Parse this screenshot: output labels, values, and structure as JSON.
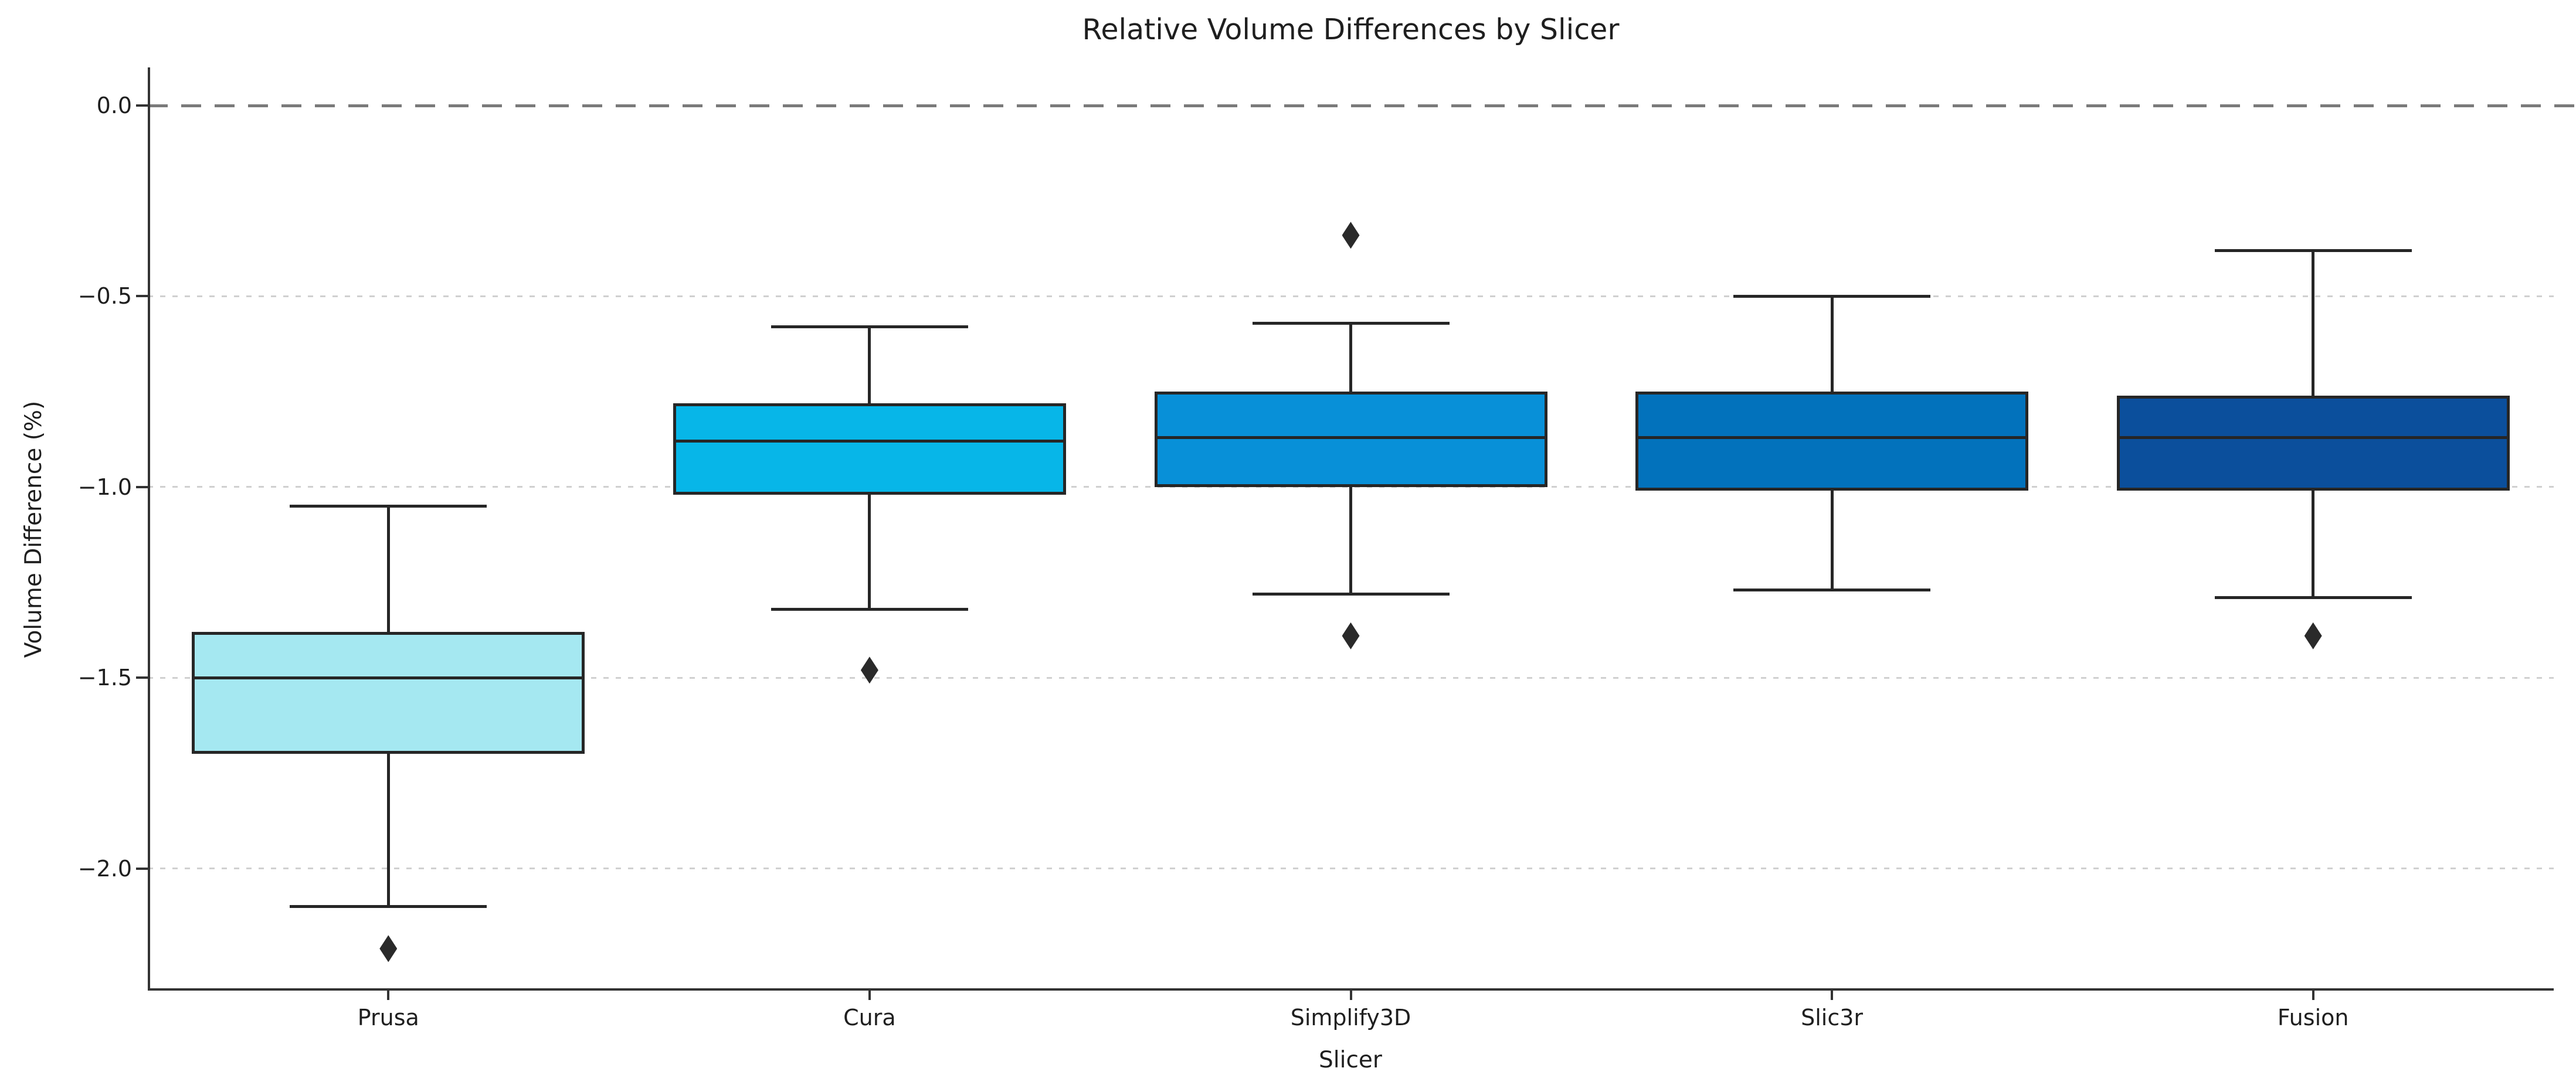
{
  "figure": {
    "background": "#ffffff",
    "text_color": "#1f1f1f",
    "spine_color": "#333333",
    "grid_color": "#d0d0d0"
  },
  "chart_data": {
    "type": "boxplot",
    "title": "Relative Volume Differences by Slicer",
    "xlabel": "Slicer",
    "ylabel": "Volume Difference (%)",
    "categories": [
      "Prusa",
      "Cura",
      "Simplify3D",
      "Slic3r",
      "Fusion"
    ],
    "ylim": [
      -2.32,
      0.1
    ],
    "grid": "horizontal-dashed",
    "legend": "none",
    "box_edge_color": "#262626",
    "outlier_color": "#2a2a2a",
    "outlier_marker": "diamond",
    "zero_line": {
      "value": 0.0,
      "style": "dashed",
      "color": "#7a7a7a"
    },
    "yticks": [
      {
        "label": "0.0",
        "value": 0.0
      },
      {
        "label": "−0.5",
        "value": -0.5
      },
      {
        "label": "−1.0",
        "value": -1.0
      },
      {
        "label": "−1.5",
        "value": -1.5
      },
      {
        "label": "−2.0",
        "value": -2.0
      }
    ],
    "series": [
      {
        "name": "Prusa",
        "box_color": "#A5E8F1",
        "whisker_low": -2.1,
        "q1": -1.7,
        "median": -1.5,
        "q3": -1.38,
        "whisker_high": -1.05,
        "outliers": [
          -2.21
        ]
      },
      {
        "name": "Cura",
        "box_color": "#07B6E8",
        "whisker_low": -1.32,
        "q1": -1.02,
        "median": -0.88,
        "q3": -0.78,
        "whisker_high": -0.58,
        "outliers": [
          -1.48
        ]
      },
      {
        "name": "Simplify3D",
        "box_color": "#0890D8",
        "whisker_low": -1.28,
        "q1": -1.0,
        "median": -0.87,
        "q3": -0.75,
        "whisker_high": -0.57,
        "outliers": [
          -0.34,
          -1.39
        ]
      },
      {
        "name": "Slic3r",
        "box_color": "#0272BC",
        "whisker_low": -1.27,
        "q1": -1.01,
        "median": -0.87,
        "q3": -0.75,
        "whisker_high": -0.5,
        "outliers": []
      },
      {
        "name": "Fusion",
        "box_color": "#0B4F9C",
        "whisker_low": -1.29,
        "q1": -1.01,
        "median": -0.87,
        "q3": -0.76,
        "whisker_high": -0.38,
        "outliers": [
          -1.39
        ]
      }
    ]
  }
}
